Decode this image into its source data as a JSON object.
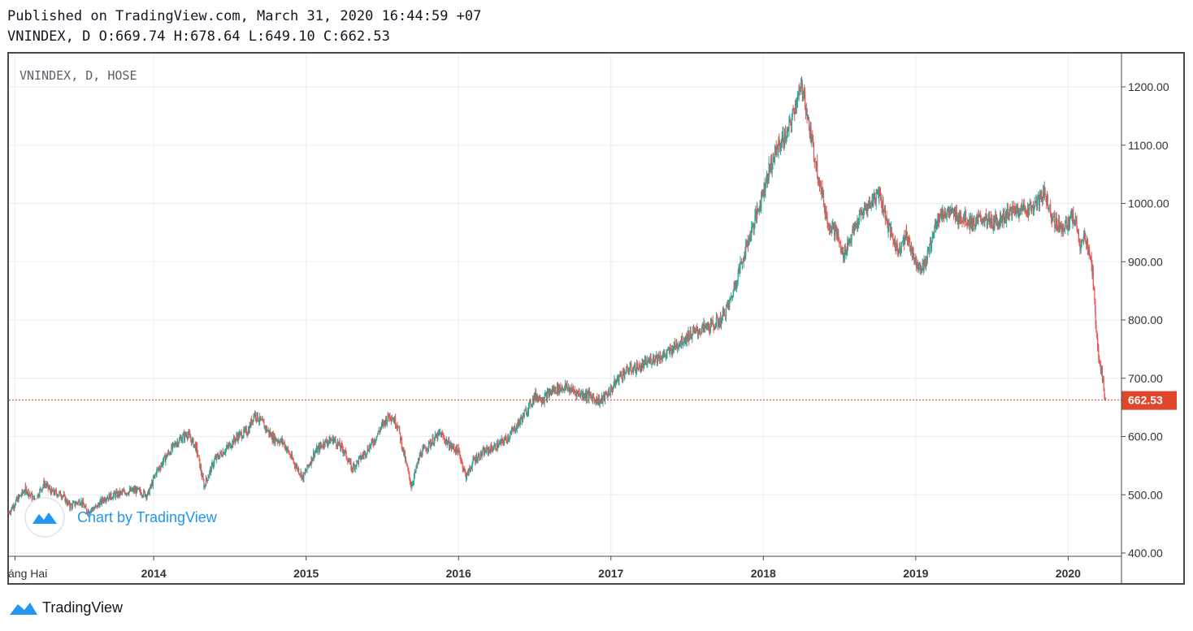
{
  "header": {
    "published_line": "Published on TradingView.com, March 31, 2020 16:44:59 +07",
    "ohlc_line": "VNINDEX, D O:669.74 H:678.64 L:649.10 C:662.53"
  },
  "chart_data": {
    "type": "candlestick",
    "symbol_label": "VNINDEX, D, HOSE",
    "ylim": [
      400,
      1250
    ],
    "y_ticks": [
      "1200.00",
      "1100.00",
      "1000.00",
      "900.00",
      "800.00",
      "700.00",
      "600.00",
      "500.00",
      "400.00"
    ],
    "y_tick_values": [
      1200,
      1100,
      1000,
      900,
      800,
      700,
      600,
      500,
      400
    ],
    "x_ticks": [
      "áng Hai",
      "2014",
      "2015",
      "2016",
      "2017",
      "2018",
      "2019",
      "2020"
    ],
    "x_tick_times": [
      2013.09,
      2014.0,
      2015.0,
      2016.0,
      2017.0,
      2018.0,
      2019.0,
      2020.0
    ],
    "xlim": [
      2013.05,
      2020.35
    ],
    "last_price": 662.53,
    "last_price_label": "662.53",
    "grid": true,
    "colors": {
      "up": "#26a69a",
      "down": "#ef5350",
      "last_price": "#e0462b",
      "grid": "#e6edf3"
    },
    "series": [
      {
        "name": "VNINDEX",
        "points": [
          [
            2013.05,
            470
          ],
          [
            2013.1,
            490
          ],
          [
            2013.16,
            510
          ],
          [
            2013.22,
            490
          ],
          [
            2013.28,
            520
          ],
          [
            2013.33,
            505
          ],
          [
            2013.4,
            500
          ],
          [
            2013.45,
            480
          ],
          [
            2013.52,
            490
          ],
          [
            2013.56,
            472
          ],
          [
            2013.62,
            478
          ],
          [
            2013.68,
            495
          ],
          [
            2013.75,
            500
          ],
          [
            2013.82,
            505
          ],
          [
            2013.88,
            508
          ],
          [
            2013.96,
            500
          ],
          [
            2014.02,
            540
          ],
          [
            2014.08,
            565
          ],
          [
            2014.15,
            590
          ],
          [
            2014.22,
            605
          ],
          [
            2014.28,
            580
          ],
          [
            2014.33,
            515
          ],
          [
            2014.4,
            560
          ],
          [
            2014.48,
            580
          ],
          [
            2014.55,
            600
          ],
          [
            2014.62,
            610
          ],
          [
            2014.66,
            640
          ],
          [
            2014.72,
            620
          ],
          [
            2014.78,
            598
          ],
          [
            2014.85,
            590
          ],
          [
            2014.92,
            555
          ],
          [
            2014.98,
            530
          ],
          [
            2015.05,
            570
          ],
          [
            2015.12,
            590
          ],
          [
            2015.18,
            595
          ],
          [
            2015.25,
            575
          ],
          [
            2015.3,
            545
          ],
          [
            2015.38,
            570
          ],
          [
            2015.45,
            595
          ],
          [
            2015.5,
            620
          ],
          [
            2015.55,
            638
          ],
          [
            2015.6,
            620
          ],
          [
            2015.65,
            560
          ],
          [
            2015.69,
            515
          ],
          [
            2015.75,
            570
          ],
          [
            2015.82,
            590
          ],
          [
            2015.88,
            605
          ],
          [
            2015.94,
            585
          ],
          [
            2016.0,
            575
          ],
          [
            2016.05,
            530
          ],
          [
            2016.1,
            560
          ],
          [
            2016.18,
            575
          ],
          [
            2016.26,
            585
          ],
          [
            2016.33,
            600
          ],
          [
            2016.4,
            625
          ],
          [
            2016.46,
            650
          ],
          [
            2016.5,
            670
          ],
          [
            2016.56,
            665
          ],
          [
            2016.62,
            680
          ],
          [
            2016.7,
            685
          ],
          [
            2016.78,
            675
          ],
          [
            2016.86,
            670
          ],
          [
            2016.93,
            660
          ],
          [
            2017.0,
            680
          ],
          [
            2017.06,
            705
          ],
          [
            2017.12,
            715
          ],
          [
            2017.2,
            720
          ],
          [
            2017.28,
            735
          ],
          [
            2017.36,
            740
          ],
          [
            2017.44,
            760
          ],
          [
            2017.52,
            775
          ],
          [
            2017.6,
            785
          ],
          [
            2017.66,
            790
          ],
          [
            2017.72,
            800
          ],
          [
            2017.78,
            830
          ],
          [
            2017.84,
            885
          ],
          [
            2017.9,
            935
          ],
          [
            2017.96,
            985
          ],
          [
            2018.04,
            1060
          ],
          [
            2018.1,
            1100
          ],
          [
            2018.16,
            1120
          ],
          [
            2018.22,
            1180
          ],
          [
            2018.26,
            1200
          ],
          [
            2018.3,
            1130
          ],
          [
            2018.36,
            1050
          ],
          [
            2018.42,
            970
          ],
          [
            2018.48,
            950
          ],
          [
            2018.52,
            910
          ],
          [
            2018.58,
            945
          ],
          [
            2018.64,
            980
          ],
          [
            2018.7,
            1000
          ],
          [
            2018.76,
            1020
          ],
          [
            2018.82,
            960
          ],
          [
            2018.88,
            920
          ],
          [
            2018.94,
            945
          ],
          [
            2019.0,
            900
          ],
          [
            2019.05,
            890
          ],
          [
            2019.1,
            930
          ],
          [
            2019.14,
            975
          ],
          [
            2019.2,
            985
          ],
          [
            2019.26,
            980
          ],
          [
            2019.32,
            975
          ],
          [
            2019.38,
            965
          ],
          [
            2019.44,
            975
          ],
          [
            2019.5,
            965
          ],
          [
            2019.56,
            975
          ],
          [
            2019.62,
            985
          ],
          [
            2019.68,
            990
          ],
          [
            2019.74,
            990
          ],
          [
            2019.8,
            1000
          ],
          [
            2019.84,
            1020
          ],
          [
            2019.88,
            990
          ],
          [
            2019.92,
            965
          ],
          [
            2019.98,
            960
          ],
          [
            2020.03,
            975
          ],
          [
            2020.06,
            960
          ],
          [
            2020.08,
            920
          ],
          [
            2020.11,
            945
          ],
          [
            2020.14,
            915
          ],
          [
            2020.16,
            880
          ],
          [
            2020.18,
            800
          ],
          [
            2020.2,
            740
          ],
          [
            2020.22,
            710
          ],
          [
            2020.24,
            670
          ],
          [
            2020.245,
            662.53
          ]
        ]
      }
    ]
  },
  "branding": {
    "watermark": "Chart by TradingView",
    "footer": "TradingView"
  }
}
